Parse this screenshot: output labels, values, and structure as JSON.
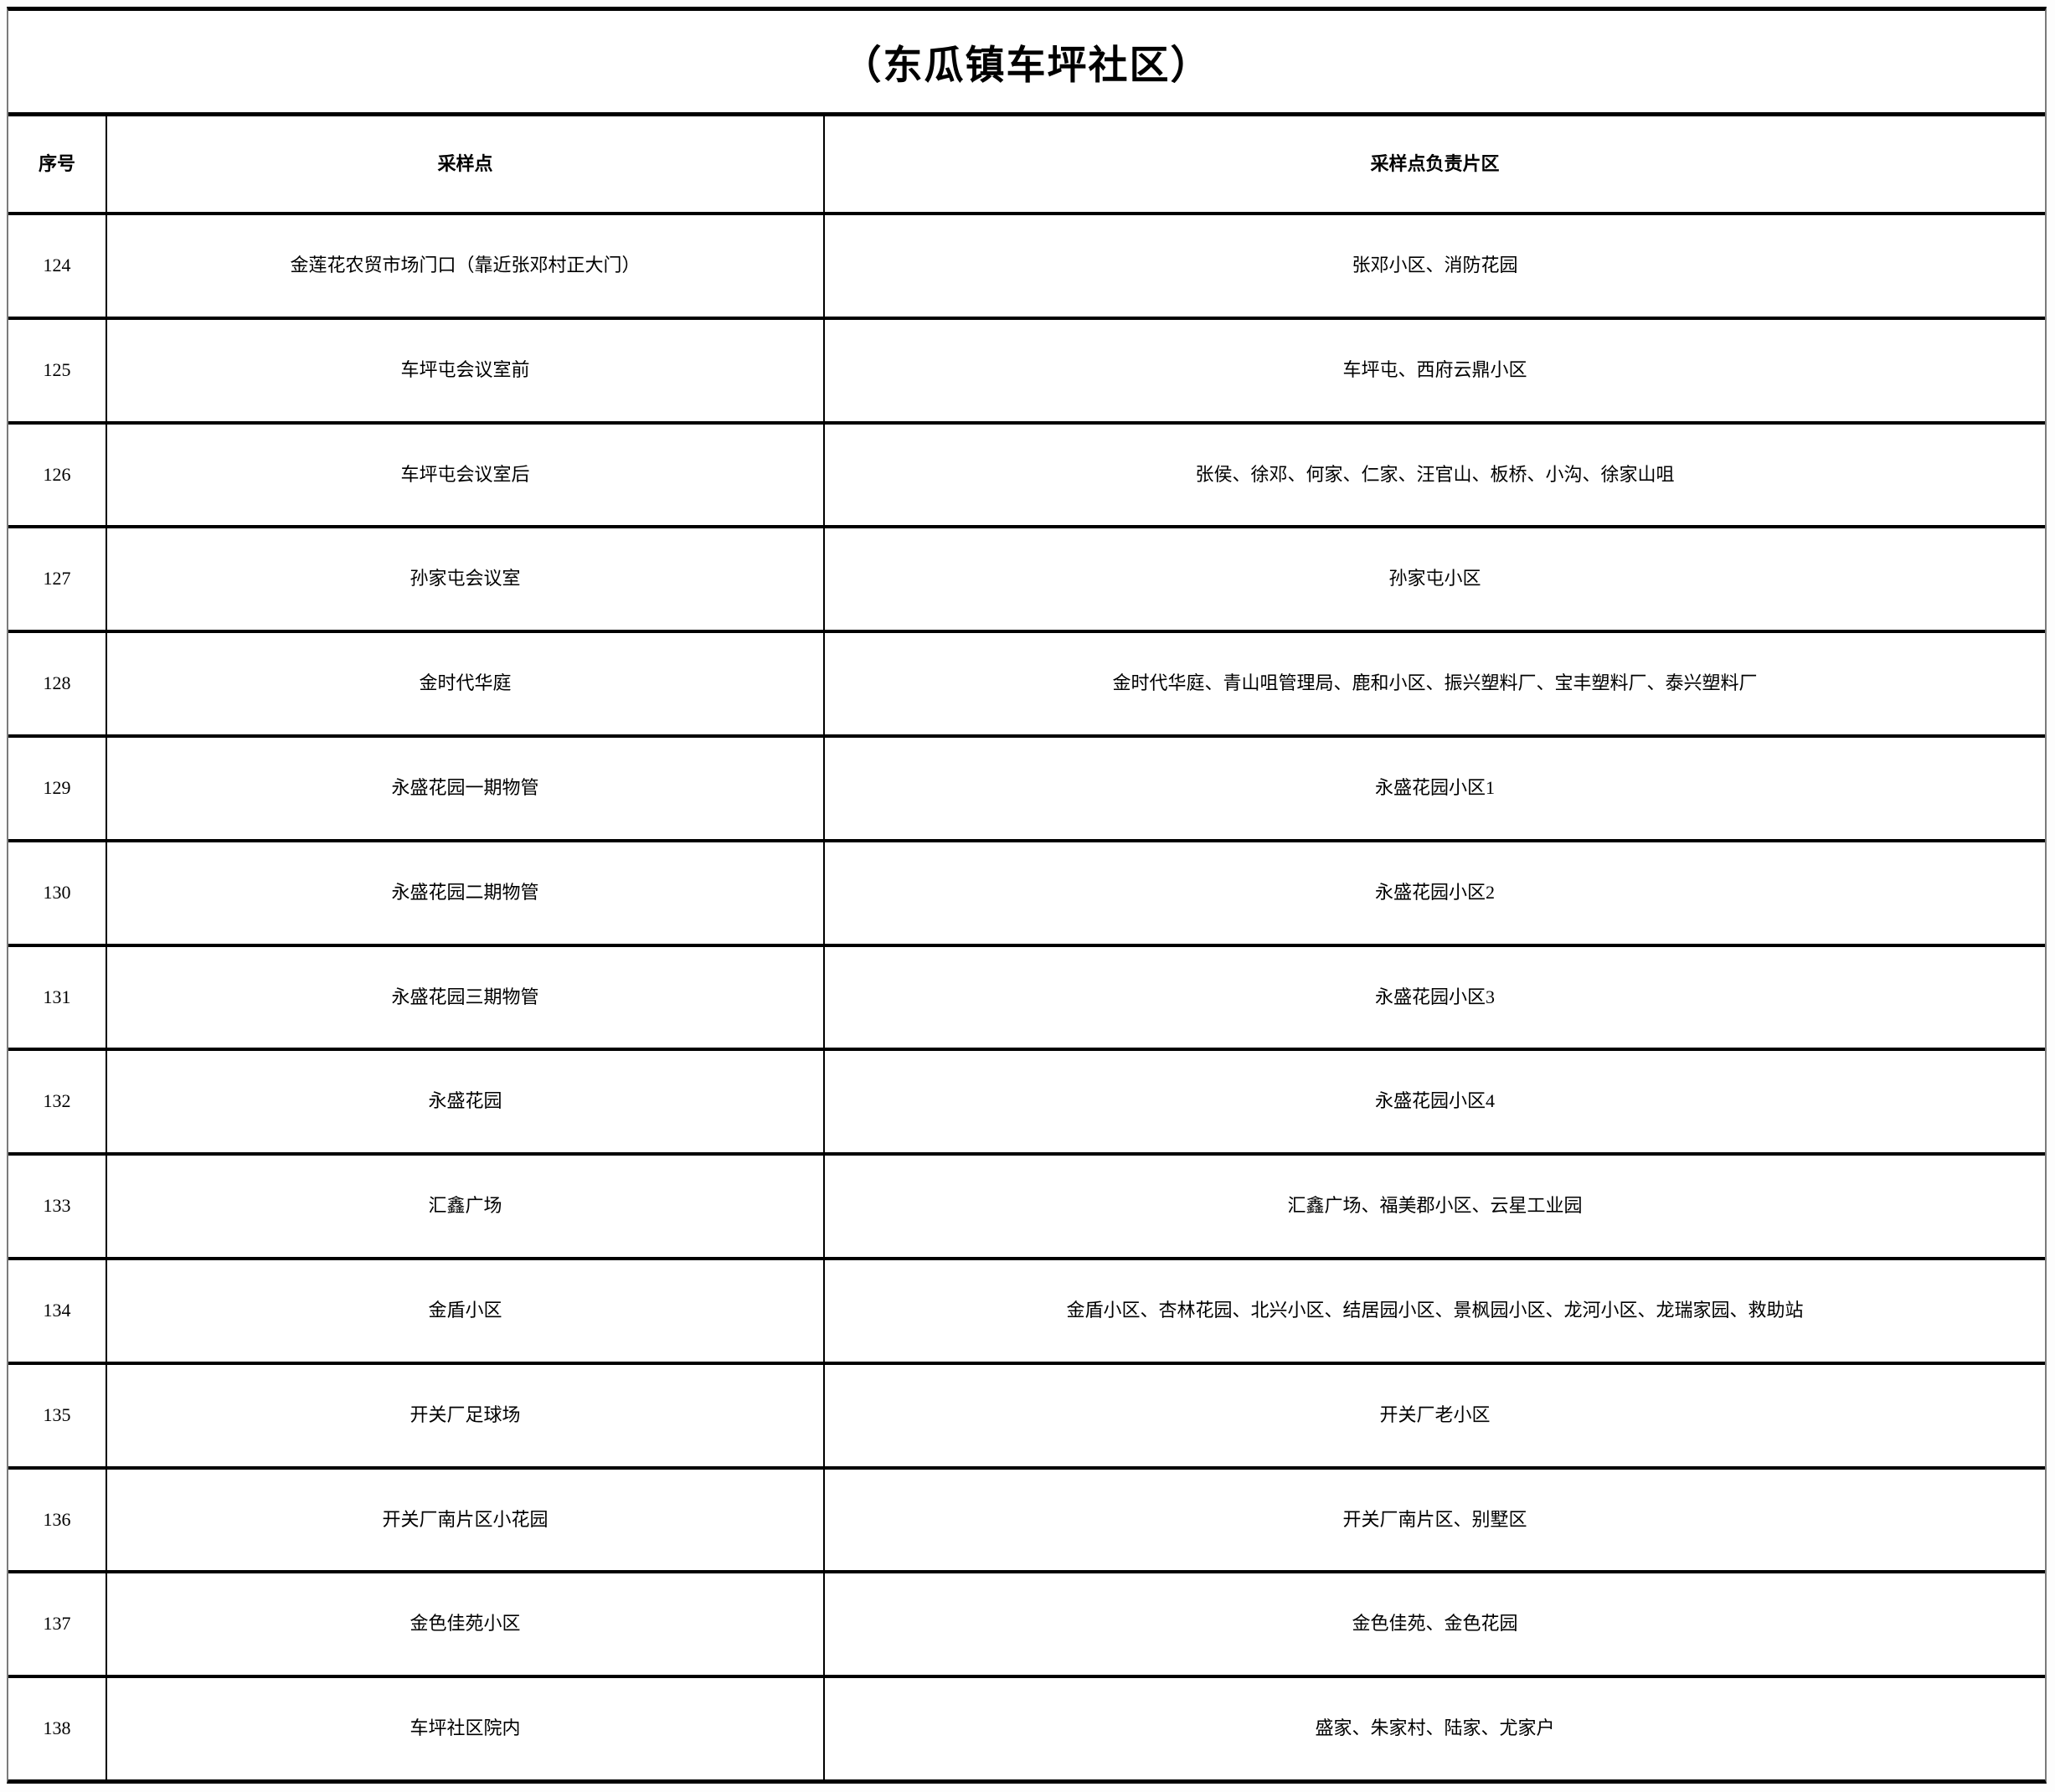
{
  "title": "（东瓜镇车坪社区）",
  "table": {
    "columns": [
      "序号",
      "采样点",
      "采样点负责片区"
    ],
    "rows": [
      {
        "no": "124",
        "point": "金莲花农贸市场门口（靠近张邓村正大门）",
        "area": "张邓小区、消防花园"
      },
      {
        "no": "125",
        "point": "车坪屯会议室前",
        "area": "车坪屯、西府云鼎小区"
      },
      {
        "no": "126",
        "point": "车坪屯会议室后",
        "area": "张侯、徐邓、何家、仁家、汪官山、板桥、小沟、徐家山咀"
      },
      {
        "no": "127",
        "point": "孙家屯会议室",
        "area": "孙家屯小区"
      },
      {
        "no": "128",
        "point": "金时代华庭",
        "area": "金时代华庭、青山咀管理局、鹿和小区、振兴塑料厂、宝丰塑料厂、泰兴塑料厂"
      },
      {
        "no": "129",
        "point": "永盛花园一期物管",
        "area": "永盛花园小区1"
      },
      {
        "no": "130",
        "point": "永盛花园二期物管",
        "area": "永盛花园小区2"
      },
      {
        "no": "131",
        "point": "永盛花园三期物管",
        "area": "永盛花园小区3"
      },
      {
        "no": "132",
        "point": "永盛花园",
        "area": "永盛花园小区4"
      },
      {
        "no": "133",
        "point": "汇鑫广场",
        "area": "汇鑫广场、福美郡小区、云星工业园"
      },
      {
        "no": "134",
        "point": "金盾小区",
        "area": "金盾小区、杏林花园、北兴小区、结居园小区、景枫园小区、龙河小区、龙瑞家园、救助站"
      },
      {
        "no": "135",
        "point": "开关厂足球场",
        "area": "开关厂老小区"
      },
      {
        "no": "136",
        "point": "开关厂南片区小花园",
        "area": "开关厂南片区、别墅区"
      },
      {
        "no": "137",
        "point": "金色佳苑小区",
        "area": "金色佳苑、金色花园"
      },
      {
        "no": "138",
        "point": "车坪社区院内",
        "area": "盛家、朱家村、陆家、尤家户"
      }
    ]
  },
  "colors": {
    "border": "#000000",
    "text": "#000000",
    "background": "#ffffff"
  }
}
